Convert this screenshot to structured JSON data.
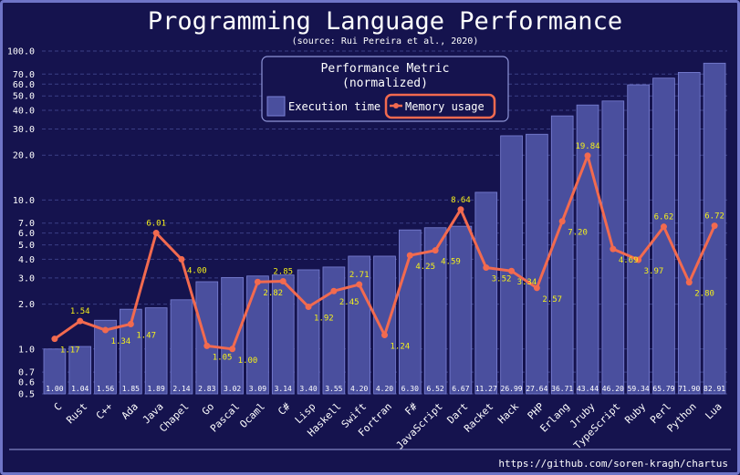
{
  "colors": {
    "background": "#15134e",
    "frame": "#6f74c7",
    "bar_fill": "#4a4f9e",
    "bar_stroke": "#7b82d6",
    "line": "#f26a4f",
    "memory_label": "#f5f01a",
    "grid": "#3b3f86",
    "text": "#ffffff"
  },
  "chart_data": {
    "type": "bar",
    "title": "Programming Language Performance",
    "subtitle": "(source: Rui Pereira et al., 2020)",
    "footer": "https://github.com/soren-kragh/chartus",
    "y_scale": "log",
    "ylim": [
      0.5,
      100
    ],
    "y_ticks": [
      0.5,
      0.6,
      0.7,
      1.0,
      2.0,
      3.0,
      4.0,
      5.0,
      6.0,
      7.0,
      10.0,
      20.0,
      30.0,
      40.0,
      50.0,
      60.0,
      70.0,
      100.0
    ],
    "y_tick_labels": [
      "0.5",
      "0.6",
      "0.7",
      "1.0",
      "2.0",
      "3.0",
      "4.0",
      "5.0",
      "6.0",
      "7.0",
      "10.0",
      "20.0",
      "30.0",
      "40.0",
      "50.0",
      "60.0",
      "70.0",
      "100.0"
    ],
    "grid": true,
    "legend": {
      "title_line1": "Performance Metric",
      "title_line2": "(normalized)",
      "placement": "top-center",
      "items": [
        "Execution time",
        "Memory usage"
      ]
    },
    "categories": [
      "C",
      "Rust",
      "C++",
      "Ada",
      "Java",
      "Chapel",
      "Go",
      "Pascal",
      "Ocaml",
      "C#",
      "Lisp",
      "Haskell",
      "Swift",
      "Fortran",
      "F#",
      "JavaScript",
      "Dart",
      "Racket",
      "Hack",
      "PHP",
      "Erlang",
      "Jruby",
      "TypeScript",
      "Ruby",
      "Perl",
      "Python",
      "Lua"
    ],
    "series": [
      {
        "name": "Execution time",
        "kind": "bar",
        "values": [
          1.0,
          1.04,
          1.56,
          1.85,
          1.89,
          2.14,
          2.83,
          3.02,
          3.09,
          3.14,
          3.4,
          3.55,
          4.2,
          4.2,
          6.3,
          6.52,
          6.67,
          11.27,
          26.99,
          27.64,
          36.71,
          43.44,
          46.2,
          59.34,
          65.79,
          71.9,
          82.91
        ],
        "labels": [
          "1.00",
          "1.04",
          "1.56",
          "1.85",
          "1.89",
          "2.14",
          "2.83",
          "3.02",
          "3.09",
          "3.14",
          "3.40",
          "3.55",
          "4.20",
          "4.20",
          "6.30",
          "6.52",
          "6.67",
          "11.27",
          "26.99",
          "27.64",
          "36.71",
          "43.44",
          "46.20",
          "59.34",
          "65.79",
          "71.90",
          "82.91"
        ]
      },
      {
        "name": "Memory usage",
        "kind": "line",
        "values": [
          1.17,
          1.54,
          1.34,
          1.47,
          6.01,
          4.0,
          1.05,
          1.0,
          2.82,
          2.85,
          1.92,
          2.45,
          2.71,
          1.24,
          4.25,
          4.59,
          8.64,
          3.52,
          3.34,
          2.57,
          7.2,
          19.84,
          4.69,
          3.97,
          6.62,
          2.8,
          6.72
        ],
        "labels": [
          "1.17",
          "1.54",
          "1.34",
          "1.47",
          "6.01",
          "4.00",
          "1.05",
          "1.00",
          "2.82",
          "2.85",
          "1.92",
          "2.45",
          "2.71",
          "1.24",
          "4.25",
          "4.59",
          "8.64",
          "3.52",
          "3.34",
          "2.57",
          "7.20",
          "19.84",
          "4.69",
          "3.97",
          "6.62",
          "2.80",
          "6.72"
        ]
      }
    ]
  }
}
